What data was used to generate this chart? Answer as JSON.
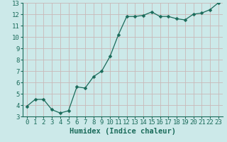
{
  "x": [
    0,
    1,
    2,
    3,
    4,
    5,
    6,
    7,
    8,
    9,
    10,
    11,
    12,
    13,
    14,
    15,
    16,
    17,
    18,
    19,
    20,
    21,
    22,
    23
  ],
  "y": [
    3.9,
    4.5,
    4.5,
    3.6,
    3.3,
    3.5,
    5.6,
    5.5,
    6.5,
    7.0,
    8.3,
    10.2,
    11.8,
    11.8,
    11.9,
    12.2,
    11.8,
    11.8,
    11.6,
    11.5,
    12.0,
    12.1,
    12.4,
    13.0
  ],
  "line_color": "#1a6b5a",
  "marker": "D",
  "marker_size": 2.5,
  "bg_color": "#cce9e9",
  "grid_color": "#c9b8b8",
  "xlabel": "Humidex (Indice chaleur)",
  "xlim": [
    -0.5,
    23.5
  ],
  "ylim": [
    3,
    13
  ],
  "yticks": [
    3,
    4,
    5,
    6,
    7,
    8,
    9,
    10,
    11,
    12,
    13
  ],
  "xticks": [
    0,
    1,
    2,
    3,
    4,
    5,
    6,
    7,
    8,
    9,
    10,
    11,
    12,
    13,
    14,
    15,
    16,
    17,
    18,
    19,
    20,
    21,
    22,
    23
  ],
  "tick_label_fontsize": 6.5,
  "xlabel_fontsize": 7.5,
  "xlabel_fontweight": "bold"
}
